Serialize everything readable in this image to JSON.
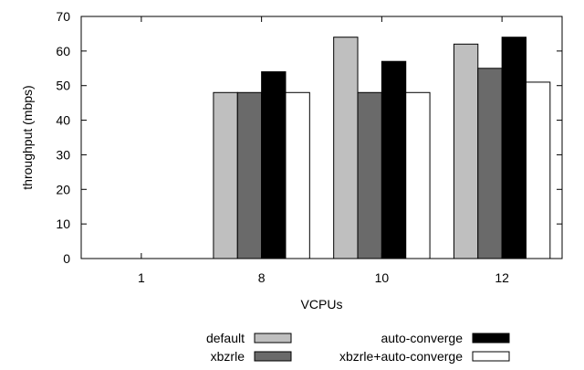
{
  "chart_data": {
    "type": "bar",
    "xlabel": "VCPUs",
    "ylabel": "throughput (mbps)",
    "ylim": [
      0,
      70
    ],
    "yticks": [
      0,
      10,
      20,
      30,
      40,
      50,
      60,
      70
    ],
    "grid": false,
    "legend_position": "bottom",
    "categories": [
      "1",
      "8",
      "10",
      "12"
    ],
    "series": [
      {
        "name": "default",
        "color": "#bfbfbf",
        "values": [
          0,
          48,
          64,
          62
        ]
      },
      {
        "name": "xbzrle",
        "color": "#6a6a6a",
        "values": [
          0,
          48,
          48,
          55
        ]
      },
      {
        "name": "auto-converge",
        "color": "#000000",
        "values": [
          0,
          54,
          57,
          64
        ]
      },
      {
        "name": "xbzrle+auto-converge",
        "color": "#ffffff",
        "values": [
          0,
          48,
          48,
          51
        ]
      }
    ]
  }
}
